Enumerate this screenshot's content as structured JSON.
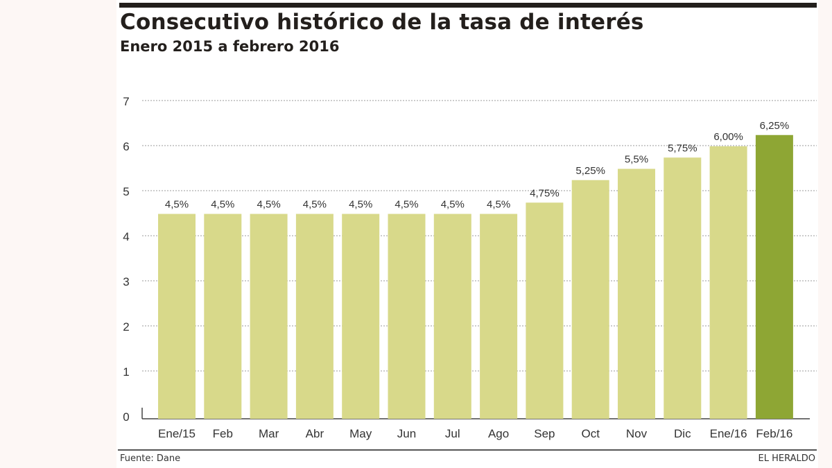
{
  "chart_data": {
    "type": "bar",
    "title": "Consecutivo histórico de la tasa de interés",
    "subtitle": "Enero 2015 a febrero 2016",
    "categories": [
      "Ene/15",
      "Feb",
      "Mar",
      "Abr",
      "May",
      "Jun",
      "Jul",
      "Ago",
      "Sep",
      "Oct",
      "Nov",
      "Dic",
      "Ene/16",
      "Feb/16"
    ],
    "values": [
      4.5,
      4.5,
      4.5,
      4.5,
      4.5,
      4.5,
      4.5,
      4.5,
      4.75,
      5.25,
      5.5,
      5.75,
      6.0,
      6.25
    ],
    "data_labels": [
      "4,5%",
      "4,5%",
      "4,5%",
      "4,5%",
      "4,5%",
      "4,5%",
      "4,5%",
      "4,5%",
      "4,75%",
      "5,25%",
      "5,5%",
      "5,75%",
      "6,00%",
      "6,25%"
    ],
    "yticks": [
      0,
      1,
      2,
      3,
      4,
      5,
      6,
      7
    ],
    "ylim": [
      0,
      7
    ],
    "xlabel": "",
    "ylabel": "",
    "grid": true,
    "bar_color": "#d8d98a",
    "highlight_color": "#8ea634",
    "highlight_index": 13
  },
  "footer": {
    "source": "Fuente: Dane",
    "brand": "EL HERALDO"
  }
}
